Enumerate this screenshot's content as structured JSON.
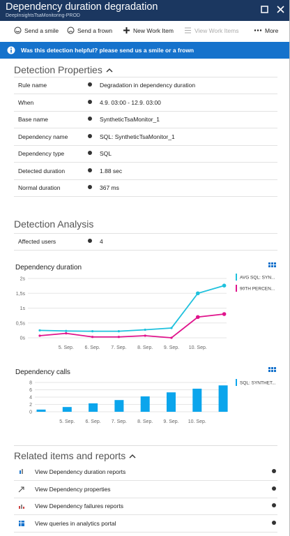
{
  "header": {
    "title": "Dependency duration degradation",
    "subtitle": "DeepInsightsTsaMonitoring-PROD"
  },
  "toolbar": [
    "Send a smile",
    "Send a frown",
    "New Work Item",
    "View Work Items",
    "More"
  ],
  "banner": "Was this detection helpful? please send us a smile or a frown",
  "properties": {
    "title": "Detection Properties",
    "rows": [
      [
        "Rule name",
        "Degradation in dependency duration"
      ],
      [
        "When",
        "4.9. 03:00 - 12.9. 03:00"
      ],
      [
        "Base name",
        "SyntheticTsaMonitor_1"
      ],
      [
        "Dependency name",
        "SQL: SyntheticTsaMonitor_1"
      ],
      [
        "Dependency type",
        "SQL"
      ],
      [
        "Detected duration",
        "1.88 sec"
      ],
      [
        "Normal duration",
        "367 ms"
      ]
    ]
  },
  "analysis": {
    "title": "Detection Analysis",
    "rows": [
      [
        "Affected users",
        4
      ]
    ]
  },
  "chart_data": [
    {
      "type": "line",
      "title": "Dependency duration",
      "categories": [
        null,
        "5. Sep.",
        "6. Sep.",
        "7. Sep.",
        "8. Sep.",
        "9. Sep.",
        "10. Sep.",
        null
      ],
      "series": [
        {
          "name": "AVG SQL: SYN...",
          "color": "#1fc1dd",
          "values": [
            0.25,
            0.23,
            0.22,
            0.22,
            0.27,
            0.33,
            1.5,
            1.76
          ]
        },
        {
          "name": "90TH PERCEN...",
          "color": "#e0148c",
          "values": [
            0.07,
            0.15,
            0.03,
            0.03,
            0.07,
            0,
            0.7,
            0.8
          ]
        }
      ],
      "ylim": [
        0,
        2
      ],
      "yticks": [
        {
          "value": 0,
          "label": "0s"
        },
        {
          "value": 0.5,
          "label": "0,5s"
        },
        {
          "value": 1,
          "label": "1s"
        },
        {
          "value": 1.5,
          "label": "1,5s"
        },
        {
          "value": 2,
          "label": "2s"
        }
      ],
      "grid": true
    },
    {
      "type": "bar",
      "title": "Dependency calls",
      "categories": [
        null,
        "5. Sep.",
        "6. Sep.",
        "7. Sep.",
        "8. Sep.",
        "9. Sep.",
        "10. Sep.",
        null
      ],
      "series": [
        {
          "name": "SQL: SYNTHET...",
          "color": "#0ba5ec",
          "values": [
            0.6,
            1.3,
            2.3,
            3.2,
            4.2,
            5.3,
            6.3,
            7.2
          ]
        }
      ],
      "ylim": [
        0,
        8
      ],
      "yticks": [
        0,
        2,
        4,
        6,
        8
      ],
      "grid": true
    }
  ],
  "related": {
    "title": "Related items and reports",
    "items": [
      "View Dependency duration reports",
      "View Dependency properties",
      "View Dependency failures reports",
      "View queries in analytics portal"
    ]
  }
}
